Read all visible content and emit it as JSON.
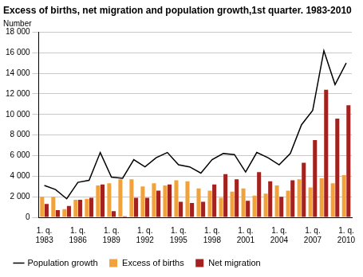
{
  "chart_data": {
    "type": "bar",
    "title": "Excess of births, net migration and population growth,1st quarter. 1983-2010",
    "y_label": "Number",
    "categories": [
      "1. q. 1983",
      null,
      null,
      "1. q. 1986",
      null,
      null,
      "1. q. 1989",
      null,
      null,
      "1. q. 1992",
      null,
      null,
      "1. q. 1995",
      null,
      null,
      "1. q. 1998",
      null,
      null,
      "1. q. 2001",
      null,
      null,
      "1. q. 2004",
      null,
      null,
      "1. q. 2007",
      null,
      null,
      "1. q. 2010"
    ],
    "series": [
      {
        "name": "Excess of births",
        "type": "bar",
        "color": "#f2a23a",
        "values": [
          2000,
          2000,
          800,
          1700,
          1800,
          3100,
          3300,
          3700,
          3700,
          3000,
          3300,
          3100,
          3600,
          3500,
          2800,
          2600,
          1900,
          2500,
          2800,
          2100,
          2300,
          3100,
          2600,
          3700,
          2900,
          3800,
          3300,
          4100
        ]
      },
      {
        "name": "Net migration",
        "type": "bar",
        "color": "#a3211f",
        "values": [
          1300,
          700,
          1100,
          1700,
          1900,
          3200,
          600,
          100,
          1900,
          1900,
          2600,
          3200,
          1500,
          1400,
          1500,
          3200,
          4200,
          3700,
          1600,
          4400,
          3500,
          2000,
          3600,
          5300,
          7500,
          12400,
          9600,
          10900
        ]
      },
      {
        "name": "Population growth",
        "type": "line",
        "color": "#000000",
        "values": [
          3100,
          2700,
          1800,
          3400,
          3600,
          6300,
          3900,
          3800,
          5600,
          4900,
          5800,
          6300,
          5100,
          4900,
          4300,
          5600,
          6200,
          6100,
          4400,
          6300,
          5800,
          5100,
          6200,
          9000,
          10400,
          16200,
          12900,
          15000
        ]
      }
    ],
    "ylim": [
      0,
      18000
    ],
    "yticks": [
      0,
      {
        "value": 2000,
        "label": "2 000"
      },
      {
        "value": 4000,
        "label": "4 000"
      },
      {
        "value": 6000,
        "label": "6 000"
      },
      {
        "value": 8000,
        "label": "8 000"
      },
      {
        "value": 10000,
        "label": "10 000"
      },
      {
        "value": 12000,
        "label": "12 000"
      },
      {
        "value": 14000,
        "label": "14 000"
      },
      {
        "value": 16000,
        "label": "16 000"
      },
      {
        "value": 18000,
        "label": "18 000"
      }
    ],
    "grid": true,
    "legend": "bottom"
  }
}
